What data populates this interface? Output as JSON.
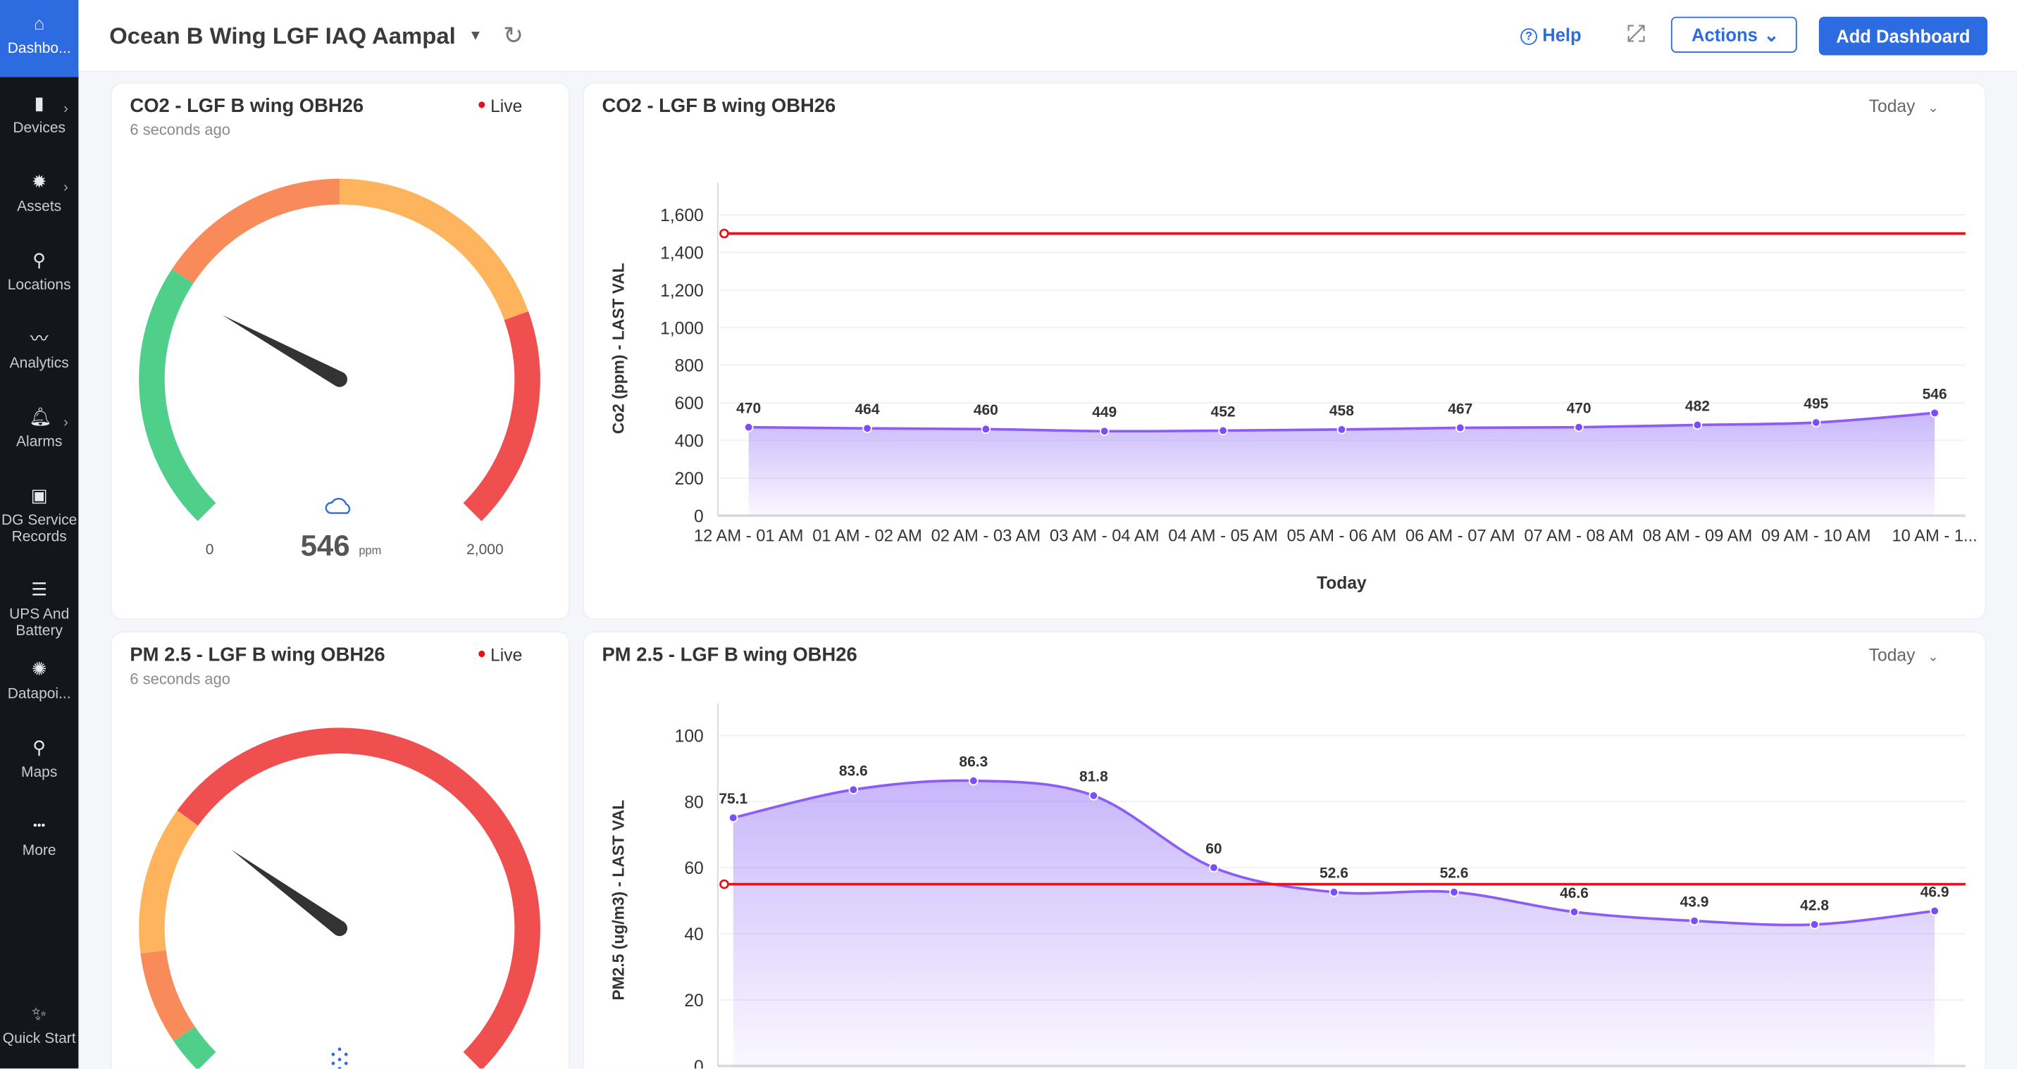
{
  "sidebar": {
    "items": [
      {
        "label": "Dashbo...",
        "icon": "home-icon",
        "active": true,
        "chevron": false
      },
      {
        "label": "Devices",
        "icon": "device-icon",
        "chevron": true
      },
      {
        "label": "Assets",
        "icon": "bulb-icon",
        "chevron": true
      },
      {
        "label": "Locations",
        "icon": "location-icon",
        "chevron": false
      },
      {
        "label": "Analytics",
        "icon": "analytics-icon",
        "chevron": false
      },
      {
        "label": "Alarms",
        "icon": "bell-icon",
        "chevron": true
      },
      {
        "label": "DG Service Records",
        "icon": "generator-icon",
        "chevron": false
      },
      {
        "label": "UPS And Battery",
        "icon": "battery-icon",
        "chevron": false
      },
      {
        "label": "Datapoi...",
        "icon": "datapoint-icon",
        "chevron": false
      },
      {
        "label": "Maps",
        "icon": "map-pin-icon",
        "chevron": false
      },
      {
        "label": "More",
        "icon": "more-icon",
        "chevron": false
      }
    ],
    "quick_start": "Quick Start"
  },
  "header": {
    "title": "Ocean B Wing LGF IAQ Aampal",
    "help": "Help",
    "actions": "Actions",
    "add_dashboard": "Add Dashboard"
  },
  "widgets": {
    "co2_gauge": {
      "title": "CO2 - LGF B wing OBH26",
      "updated": "6 seconds ago",
      "live": "Live",
      "min": "0",
      "max": "2,000",
      "value": "546",
      "unit": "ppm",
      "fraction": 0.273,
      "bands": [
        {
          "to": 0.29,
          "color": "#4fcf8a"
        },
        {
          "to": 0.5,
          "color": "#f98a5a"
        },
        {
          "to": 0.76,
          "color": "#fdb45c"
        },
        {
          "to": 1,
          "color": "#f04f4f"
        }
      ]
    },
    "pm_gauge": {
      "title": "PM 2.5 - LGF B wing OBH26",
      "updated": "6 seconds ago",
      "live": "Live",
      "fraction": 0.3,
      "bands": [
        {
          "to": 0.04,
          "color": "#4fcf8a"
        },
        {
          "to": 0.14,
          "color": "#f98a5a"
        },
        {
          "to": 0.3,
          "color": "#fdb45c"
        },
        {
          "to": 1,
          "color": "#f04f4f"
        }
      ]
    },
    "co2_chart": {
      "title": "CO2 - LGF B wing OBH26",
      "range": "Today"
    },
    "pm_chart": {
      "title": "PM 2.5 - LGF B wing OBH26",
      "range": "Today"
    }
  },
  "chart_data": [
    {
      "type": "area",
      "title": "CO2 - LGF B wing OBH26",
      "xlabel": "Today",
      "ylabel": "Co2 (ppm) - LAST VAL",
      "ylim": [
        0,
        1600
      ],
      "yticks": [
        0,
        200,
        400,
        600,
        800,
        1000,
        1200,
        1400,
        1600
      ],
      "ytick_labels": [
        "0",
        "200",
        "400",
        "600",
        "800",
        "1,000",
        "1,200",
        "1,400",
        "1,600"
      ],
      "categories": [
        "12 AM - 01 AM",
        "01 AM - 02 AM",
        "02 AM - 03 AM",
        "03 AM - 04 AM",
        "04 AM - 05 AM",
        "05 AM - 06 AM",
        "06 AM - 07 AM",
        "07 AM - 08 AM",
        "08 AM - 09 AM",
        "09 AM - 10 AM",
        "10 AM - 1..."
      ],
      "values": [
        470,
        464,
        460,
        449,
        452,
        458,
        467,
        470,
        482,
        495,
        546
      ],
      "threshold": 1500
    },
    {
      "type": "area",
      "title": "PM 2.5 - LGF B wing OBH26",
      "ylabel": "PM2.5 (ug/m3) - LAST VAL",
      "ylim": [
        0,
        100
      ],
      "yticks": [
        0,
        20,
        40,
        60,
        80,
        100
      ],
      "ytick_labels": [
        "0",
        "20",
        "40",
        "60",
        "80",
        "100"
      ],
      "values": [
        75.1,
        83.6,
        86.3,
        81.8,
        60,
        52.6,
        52.6,
        46.6,
        43.9,
        42.8,
        46.9
      ],
      "threshold": 55
    }
  ],
  "colors": {
    "accent": "#2d6be0",
    "series": "#8b5cf6",
    "threshold": "#e5121b"
  }
}
